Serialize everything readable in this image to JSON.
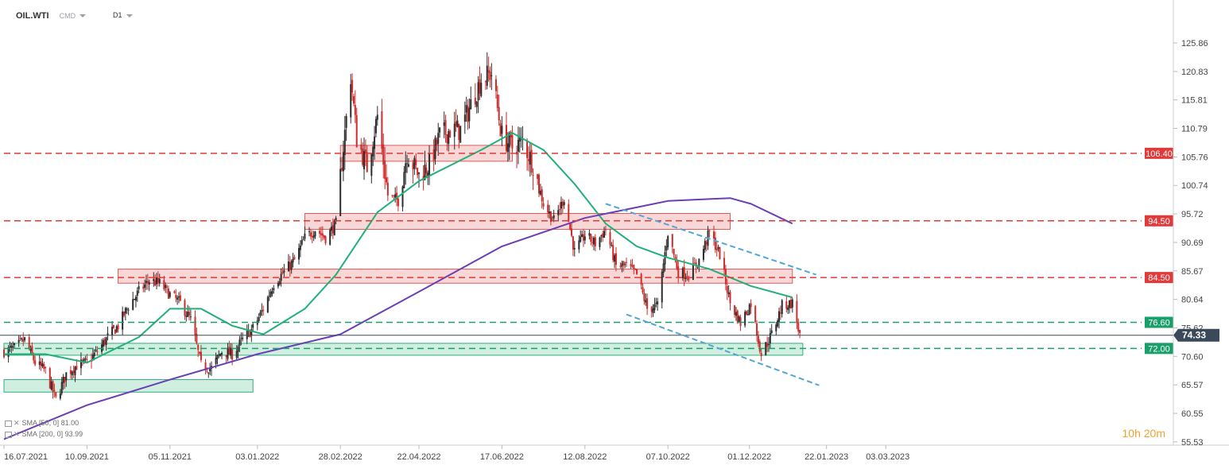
{
  "header": {
    "symbol": "OIL.WTI",
    "type": "CMD",
    "interval": "D1"
  },
  "timer": "10h 20m",
  "indicators": [
    {
      "label": "SMA [50, 0] 81.00",
      "color": "#22b07a"
    },
    {
      "label": "SMA [200, 0] 93.99",
      "color": "#6a3fb5"
    }
  ],
  "colors": {
    "up": "#2c2c2c",
    "down": "#cf2b2b",
    "sma50": "#22b07a",
    "sma200": "#6a3fb5",
    "resistance": "#e23a3a",
    "support": "#19a06a",
    "channel": "#52a6d6",
    "current": "#3a4a5a"
  },
  "chart_data": {
    "type": "candlestick",
    "instrument": "OIL.WTI",
    "interval": "D1",
    "xlabel": "",
    "ylabel": "",
    "x_ticks": [
      "16.07.2021",
      "10.09.2021",
      "05.11.2021",
      "03.01.2022",
      "28.02.2022",
      "22.04.2022",
      "17.06.2022",
      "12.08.2022",
      "07.10.2022",
      "01.12.2022",
      "22.01.2023",
      "03.03.2023"
    ],
    "y_ticks": [
      125.86,
      120.83,
      115.81,
      110.79,
      105.76,
      100.74,
      95.72,
      90.69,
      85.67,
      80.64,
      75.62,
      70.6,
      65.57,
      60.55,
      55.53
    ],
    "ylim": [
      55.53,
      125.86
    ],
    "current_price": 74.33,
    "close_path": [
      [
        "16.07.2021",
        71.5
      ],
      [
        "23.07.2021",
        72.0
      ],
      [
        "30.07.2021",
        73.5
      ],
      [
        "06.08.2021",
        69.5
      ],
      [
        "13.08.2021",
        68.0
      ],
      [
        "20.08.2021",
        63.0
      ],
      [
        "27.08.2021",
        67.5
      ],
      [
        "03.09.2021",
        69.0
      ],
      [
        "10.09.2021",
        69.5
      ],
      [
        "17.09.2021",
        71.5
      ],
      [
        "24.09.2021",
        74.0
      ],
      [
        "01.10.2021",
        76.0
      ],
      [
        "08.10.2021",
        79.5
      ],
      [
        "15.10.2021",
        82.0
      ],
      [
        "22.10.2021",
        84.0
      ],
      [
        "29.10.2021",
        83.5
      ],
      [
        "05.11.2021",
        81.5
      ],
      [
        "12.11.2021",
        80.0
      ],
      [
        "19.11.2021",
        77.0
      ],
      [
        "26.11.2021",
        69.0
      ],
      [
        "03.12.2021",
        68.5
      ],
      [
        "10.12.2021",
        71.5
      ],
      [
        "17.12.2021",
        71.0
      ],
      [
        "24.12.2021",
        73.5
      ],
      [
        "31.12.2021",
        75.5
      ],
      [
        "07.01.2022",
        79.0
      ],
      [
        "14.01.2022",
        83.5
      ],
      [
        "21.01.2022",
        85.5
      ],
      [
        "28.01.2022",
        87.5
      ],
      [
        "04.02.2022",
        91.5
      ],
      [
        "11.02.2022",
        93.0
      ],
      [
        "18.02.2022",
        91.5
      ],
      [
        "25.02.2022",
        94.0
      ],
      [
        "01.03.2022",
        105.0
      ],
      [
        "07.03.2022",
        120.0
      ],
      [
        "11.03.2022",
        109.0
      ],
      [
        "18.03.2022",
        104.0
      ],
      [
        "25.03.2022",
        113.0
      ],
      [
        "01.04.2022",
        99.0
      ],
      [
        "08.04.2022",
        98.0
      ],
      [
        "14.04.2022",
        106.5
      ],
      [
        "22.04.2022",
        102.5
      ],
      [
        "29.04.2022",
        104.5
      ],
      [
        "06.05.2022",
        109.5
      ],
      [
        "13.05.2022",
        110.5
      ],
      [
        "20.05.2022",
        110.5
      ],
      [
        "27.05.2022",
        115.0
      ],
      [
        "03.06.2022",
        119.5
      ],
      [
        "10.06.2022",
        120.5
      ],
      [
        "17.06.2022",
        109.5
      ],
      [
        "24.06.2022",
        107.5
      ],
      [
        "01.07.2022",
        108.5
      ],
      [
        "08.07.2022",
        104.5
      ],
      [
        "15.07.2022",
        97.5
      ],
      [
        "22.07.2022",
        94.5
      ],
      [
        "29.07.2022",
        98.5
      ],
      [
        "05.08.2022",
        89.0
      ],
      [
        "12.08.2022",
        92.0
      ],
      [
        "19.08.2022",
        90.5
      ],
      [
        "26.08.2022",
        93.0
      ],
      [
        "02.09.2022",
        86.5
      ],
      [
        "09.09.2022",
        86.5
      ],
      [
        "16.09.2022",
        85.0
      ],
      [
        "23.09.2022",
        79.0
      ],
      [
        "30.09.2022",
        79.5
      ],
      [
        "07.10.2022",
        92.5
      ],
      [
        "14.10.2022",
        85.5
      ],
      [
        "21.10.2022",
        85.0
      ],
      [
        "28.10.2022",
        87.5
      ],
      [
        "04.11.2022",
        92.5
      ],
      [
        "11.11.2022",
        88.5
      ],
      [
        "18.11.2022",
        80.0
      ],
      [
        "25.11.2022",
        76.5
      ],
      [
        "02.12.2022",
        80.0
      ],
      [
        "09.12.2022",
        71.0
      ],
      [
        "16.12.2022",
        74.5
      ],
      [
        "23.12.2022",
        79.5
      ],
      [
        "30.12.2022",
        80.0
      ],
      [
        "04.01.2023",
        74.3
      ]
    ],
    "series": [
      {
        "name": "SMA [50, 0]",
        "values": [
          [
            "16.07.2021",
            71.0
          ],
          [
            "13.08.2021",
            71.0
          ],
          [
            "10.09.2021",
            69.5
          ],
          [
            "15.10.2021",
            74.0
          ],
          [
            "05.11.2021",
            79.0
          ],
          [
            "26.11.2021",
            79.0
          ],
          [
            "17.12.2021",
            76.0
          ],
          [
            "07.01.2022",
            74.5
          ],
          [
            "04.02.2022",
            79.0
          ],
          [
            "25.02.2022",
            85.0
          ],
          [
            "25.03.2022",
            96.0
          ],
          [
            "22.04.2022",
            101.5
          ],
          [
            "03.06.2022",
            107.0
          ],
          [
            "24.06.2022",
            110.0
          ],
          [
            "15.07.2022",
            107.0
          ],
          [
            "05.08.2022",
            101.0
          ],
          [
            "26.08.2022",
            94.0
          ],
          [
            "16.09.2022",
            90.0
          ],
          [
            "07.10.2022",
            88.0
          ],
          [
            "04.11.2022",
            86.0
          ],
          [
            "02.12.2022",
            83.0
          ],
          [
            "30.12.2022",
            81.0
          ]
        ]
      },
      {
        "name": "SMA [200, 0]",
        "values": [
          [
            "16.07.2021",
            56.0
          ],
          [
            "10.09.2021",
            62.0
          ],
          [
            "05.11.2021",
            66.5
          ],
          [
            "03.01.2022",
            71.0
          ],
          [
            "28.02.2022",
            74.5
          ],
          [
            "22.04.2022",
            82.0
          ],
          [
            "17.06.2022",
            90.0
          ],
          [
            "12.08.2022",
            95.0
          ],
          [
            "07.10.2022",
            98.0
          ],
          [
            "18.11.2022",
            98.5
          ],
          [
            "02.12.2022",
            97.5
          ],
          [
            "30.12.2022",
            94.0
          ]
        ]
      }
    ],
    "horizontal_levels": [
      {
        "label": "106.40",
        "value": 106.4,
        "kind": "resistance"
      },
      {
        "label": "94.50",
        "value": 94.5,
        "kind": "resistance"
      },
      {
        "label": "84.50",
        "value": 84.5,
        "kind": "resistance"
      },
      {
        "label": "76.60",
        "value": 76.6,
        "kind": "support"
      },
      {
        "label": "72.00",
        "value": 72.0,
        "kind": "support"
      }
    ],
    "zones": [
      {
        "kind": "resistance",
        "from": "28.02.2022",
        "to": "24.06.2022",
        "y": [
          105.0,
          107.8
        ]
      },
      {
        "kind": "resistance",
        "from": "04.02.2022",
        "to": "18.11.2022",
        "y": [
          93.0,
          95.8
        ]
      },
      {
        "kind": "resistance",
        "from": "01.10.2021",
        "to": "30.12.2022",
        "y": [
          83.5,
          86.0
        ]
      },
      {
        "kind": "support",
        "from": "16.07.2021",
        "to": "06.01.2023",
        "y": [
          70.8,
          72.9
        ]
      },
      {
        "kind": "support",
        "from": "16.07.2021",
        "to": "31.12.2021",
        "y": [
          64.3,
          66.5
        ]
      }
    ],
    "trendlines": [
      {
        "kind": "channel-upper",
        "from": [
          "26.08.2022",
          97.5
        ],
        "to": [
          "15.01.2023",
          85.0
        ]
      },
      {
        "kind": "channel-lower",
        "from": [
          "09.09.2022",
          78.0
        ],
        "to": [
          "17.01.2023",
          65.5
        ]
      }
    ],
    "grid": false,
    "legend_position": "bottom-left"
  }
}
